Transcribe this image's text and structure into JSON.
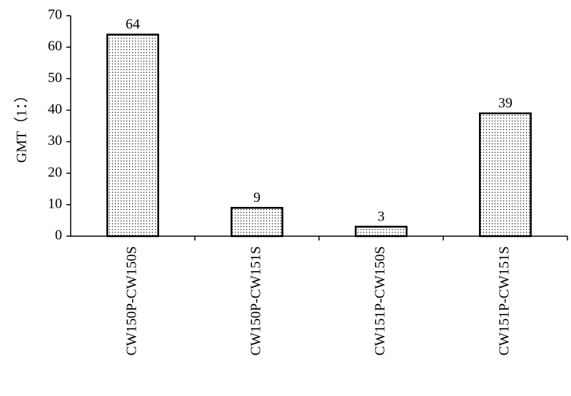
{
  "chart_data": {
    "type": "bar",
    "y_label": "GMT（1：）",
    "categories": [
      "CW150P-CW150S",
      "CW150P-CW151S",
      "CW151P-CW150S",
      "CW151P-CW151S"
    ],
    "values": [
      64,
      9,
      3,
      39
    ],
    "color": "#000000",
    "ylim": [
      0,
      70
    ],
    "yticks": [
      0,
      10,
      20,
      30,
      40,
      50,
      60,
      70
    ]
  }
}
